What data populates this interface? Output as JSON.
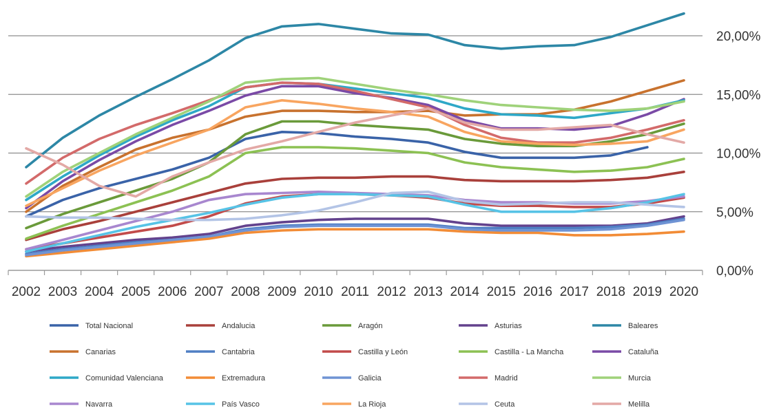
{
  "chart_data": {
    "type": "line",
    "x": [
      "2002",
      "2003",
      "2004",
      "2005",
      "2006",
      "2007",
      "2008",
      "2009",
      "2010",
      "2011",
      "2012",
      "2013",
      "2014",
      "2015",
      "2016",
      "2017",
      "2018",
      "2019",
      "2020"
    ],
    "y_ticks": [
      "0,00%",
      "5,00%",
      "10,00%",
      "15,00%",
      "20,00%"
    ],
    "y_tick_values": [
      0,
      5,
      10,
      15,
      20
    ],
    "ylim": [
      0,
      22
    ],
    "grid": "horizontal",
    "y_axis_position": "right",
    "legend_position": "bottom",
    "series": [
      {
        "name": "Total Nacional",
        "color": "#3a63a8",
        "values": [
          4.6,
          6.0,
          7.0,
          7.8,
          8.6,
          9.6,
          11.2,
          11.8,
          11.7,
          11.4,
          11.2,
          10.9,
          10.1,
          9.6,
          9.6,
          9.6,
          9.8,
          10.5,
          null
        ]
      },
      {
        "name": "Andalucia",
        "color": "#a9403b",
        "values": [
          2.6,
          3.5,
          4.2,
          5.0,
          5.8,
          6.6,
          7.4,
          7.8,
          7.9,
          7.9,
          8.0,
          8.0,
          7.7,
          7.6,
          7.6,
          7.6,
          7.7,
          7.9,
          8.4
        ]
      },
      {
        "name": "Aragón",
        "color": "#6a9a3a",
        "values": [
          3.6,
          4.8,
          5.8,
          6.8,
          7.8,
          9.2,
          11.6,
          12.7,
          12.7,
          12.4,
          12.2,
          12.0,
          11.2,
          10.8,
          10.6,
          10.6,
          11.0,
          11.6,
          12.5
        ]
      },
      {
        "name": "Asturias",
        "color": "#63428d",
        "values": [
          1.6,
          2.0,
          2.3,
          2.6,
          2.8,
          3.1,
          3.8,
          4.1,
          4.3,
          4.4,
          4.4,
          4.4,
          4.0,
          3.8,
          3.8,
          3.8,
          3.8,
          4.0,
          4.6
        ]
      },
      {
        "name": "Baleares",
        "color": "#2d87a6",
        "values": [
          8.8,
          11.3,
          13.2,
          14.8,
          16.3,
          17.9,
          19.8,
          20.8,
          21.0,
          20.6,
          20.2,
          20.1,
          19.2,
          18.9,
          19.1,
          19.2,
          19.9,
          20.9,
          21.9
        ]
      },
      {
        "name": "Canarias",
        "color": "#c8722e",
        "values": [
          5.0,
          7.2,
          8.8,
          10.3,
          11.3,
          12.0,
          13.1,
          13.6,
          13.6,
          13.5,
          13.5,
          13.6,
          13.2,
          13.3,
          13.3,
          13.7,
          14.4,
          15.3,
          16.2
        ]
      },
      {
        "name": "Cantabria",
        "color": "#4f7fc4",
        "values": [
          1.4,
          1.8,
          2.1,
          2.4,
          2.6,
          2.9,
          3.5,
          3.8,
          3.9,
          3.9,
          3.9,
          3.9,
          3.6,
          3.6,
          3.6,
          3.6,
          3.7,
          3.9,
          4.4
        ]
      },
      {
        "name": "Castilla y León",
        "color": "#c24b4a",
        "values": [
          1.8,
          2.3,
          2.8,
          3.3,
          3.8,
          4.6,
          5.7,
          6.3,
          6.5,
          6.5,
          6.4,
          6.2,
          5.7,
          5.5,
          5.5,
          5.4,
          5.4,
          5.7,
          6.2
        ]
      },
      {
        "name": "Castilla - La Mancha",
        "color": "#8cc153",
        "values": [
          2.7,
          3.8,
          4.8,
          5.8,
          6.8,
          8.0,
          10.0,
          10.5,
          10.5,
          10.4,
          10.2,
          10.0,
          9.2,
          8.8,
          8.6,
          8.4,
          8.5,
          8.8,
          9.5
        ]
      },
      {
        "name": "Cataluña",
        "color": "#7a4aa6",
        "values": [
          5.3,
          7.6,
          9.4,
          11.0,
          12.4,
          13.6,
          14.9,
          15.7,
          15.7,
          15.1,
          14.7,
          14.1,
          12.8,
          12.1,
          12.1,
          12.0,
          12.3,
          13.3,
          14.6
        ]
      },
      {
        "name": "Comunidad Valenciana",
        "color": "#2ea8c7",
        "values": [
          6.0,
          8.0,
          9.8,
          11.4,
          12.8,
          14.0,
          15.6,
          16.0,
          15.9,
          15.5,
          15.1,
          14.7,
          13.8,
          13.3,
          13.2,
          13.0,
          13.4,
          13.8,
          14.5
        ]
      },
      {
        "name": "Extremadura",
        "color": "#f28c36",
        "values": [
          1.2,
          1.5,
          1.8,
          2.1,
          2.4,
          2.7,
          3.2,
          3.4,
          3.5,
          3.5,
          3.5,
          3.5,
          3.3,
          3.2,
          3.2,
          3.0,
          3.0,
          3.1,
          3.3
        ]
      },
      {
        "name": "Galicia",
        "color": "#6f93d4",
        "values": [
          1.3,
          1.7,
          2.0,
          2.3,
          2.6,
          2.9,
          3.4,
          3.7,
          3.8,
          3.8,
          3.8,
          3.8,
          3.5,
          3.4,
          3.4,
          3.4,
          3.5,
          3.8,
          4.3
        ]
      },
      {
        "name": "Madrid",
        "color": "#d36a6a",
        "values": [
          7.4,
          9.6,
          11.2,
          12.4,
          13.4,
          14.5,
          15.6,
          16.0,
          15.9,
          15.3,
          14.6,
          13.9,
          12.4,
          11.3,
          10.9,
          10.9,
          11.3,
          12.0,
          12.8
        ]
      },
      {
        "name": "Murcia",
        "color": "#9fd27a",
        "values": [
          6.3,
          8.4,
          10.0,
          11.6,
          13.0,
          14.4,
          16.0,
          16.3,
          16.4,
          15.9,
          15.4,
          15.0,
          14.5,
          14.1,
          13.9,
          13.7,
          13.6,
          13.8,
          14.4
        ]
      },
      {
        "name": "Navarra",
        "color": "#a887cf",
        "values": [
          1.8,
          2.6,
          3.4,
          4.2,
          5.0,
          6.0,
          6.5,
          6.6,
          6.7,
          6.6,
          6.5,
          6.4,
          6.0,
          5.8,
          5.8,
          5.7,
          5.7,
          5.9,
          6.3
        ]
      },
      {
        "name": "País Vasco",
        "color": "#57c3e6",
        "values": [
          1.6,
          2.3,
          3.0,
          3.7,
          4.3,
          4.9,
          5.6,
          6.2,
          6.5,
          6.5,
          6.4,
          6.3,
          5.6,
          5.0,
          5.0,
          5.0,
          5.3,
          5.8,
          6.5
        ]
      },
      {
        "name": "La Rioja",
        "color": "#f8a560",
        "values": [
          5.5,
          7.0,
          8.5,
          9.8,
          10.9,
          12.0,
          13.9,
          14.5,
          14.2,
          13.8,
          13.5,
          13.1,
          11.8,
          11.0,
          10.8,
          10.7,
          10.8,
          11.0,
          12.0
        ]
      },
      {
        "name": "Ceuta",
        "color": "#b3c4e6",
        "values": [
          4.6,
          4.5,
          4.5,
          4.4,
          4.3,
          4.3,
          4.4,
          4.7,
          5.1,
          5.8,
          6.6,
          6.7,
          5.9,
          5.6,
          5.7,
          5.8,
          5.8,
          5.6,
          5.4
        ]
      },
      {
        "name": "Melilla",
        "color": "#e3a9a6",
        "values": [
          10.4,
          9.0,
          7.2,
          6.3,
          8.0,
          9.2,
          10.3,
          11.0,
          11.8,
          12.6,
          13.2,
          13.8,
          12.6,
          12.0,
          12.0,
          12.2,
          12.4,
          11.6,
          10.9
        ]
      }
    ]
  }
}
